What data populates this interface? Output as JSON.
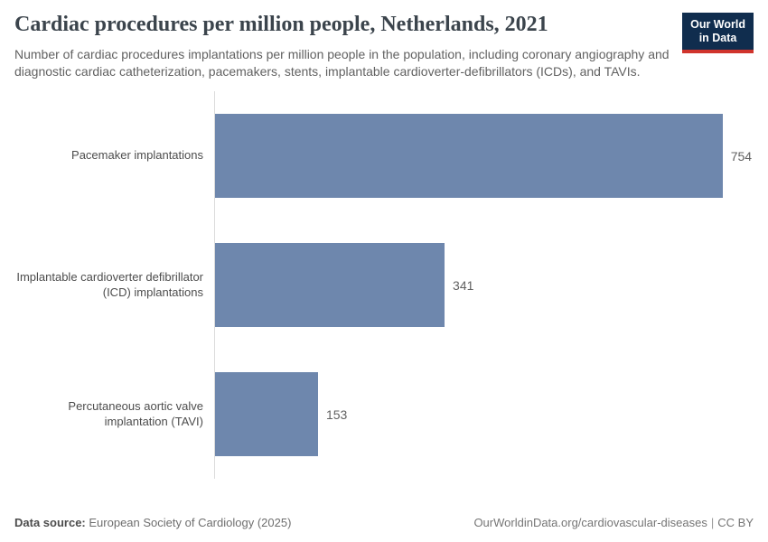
{
  "header": {
    "title": "Cardiac procedures per million people, Netherlands, 2021",
    "subtitle": "Number of cardiac procedures implantations per million people in the population, including coronary angiography and diagnostic cardiac catheterization, pacemakers, stents, implantable cardioverter-defibrillators (ICDs), and TAVIs.",
    "logo": {
      "line1": "Our World",
      "line2": "in Data",
      "bg_color": "#102d4e",
      "accent_color": "#d0342c"
    }
  },
  "chart_data": {
    "type": "bar",
    "orientation": "horizontal",
    "title": "Cardiac procedures per million people, Netherlands, 2021",
    "categories": [
      "Pacemaker implantations",
      "Implantable cardioverter defibrillator (ICD) implantations",
      "Percutaneous aortic valve implantation (TAVI)"
    ],
    "categories_display": [
      "Pacemaker implantations",
      "Implantable cardioverter defibrillator\n(ICD) implantations",
      "Percutaneous aortic valve\nimplantation (TAVI)"
    ],
    "values": [
      754,
      341,
      153
    ],
    "value_labels": [
      "754",
      "341",
      "153"
    ],
    "xlabel": "",
    "ylabel": "",
    "xlim": [
      0,
      800
    ],
    "bar_color": "#6e87ad",
    "axis_color": "#dcdcdc",
    "grid": false,
    "legend": false
  },
  "footer": {
    "source_label": "Data source:",
    "source_value": "European Society of Cardiology (2025)",
    "link": "OurWorldinData.org/cardiovascular-diseases",
    "separator": "|",
    "license": "CC BY"
  }
}
